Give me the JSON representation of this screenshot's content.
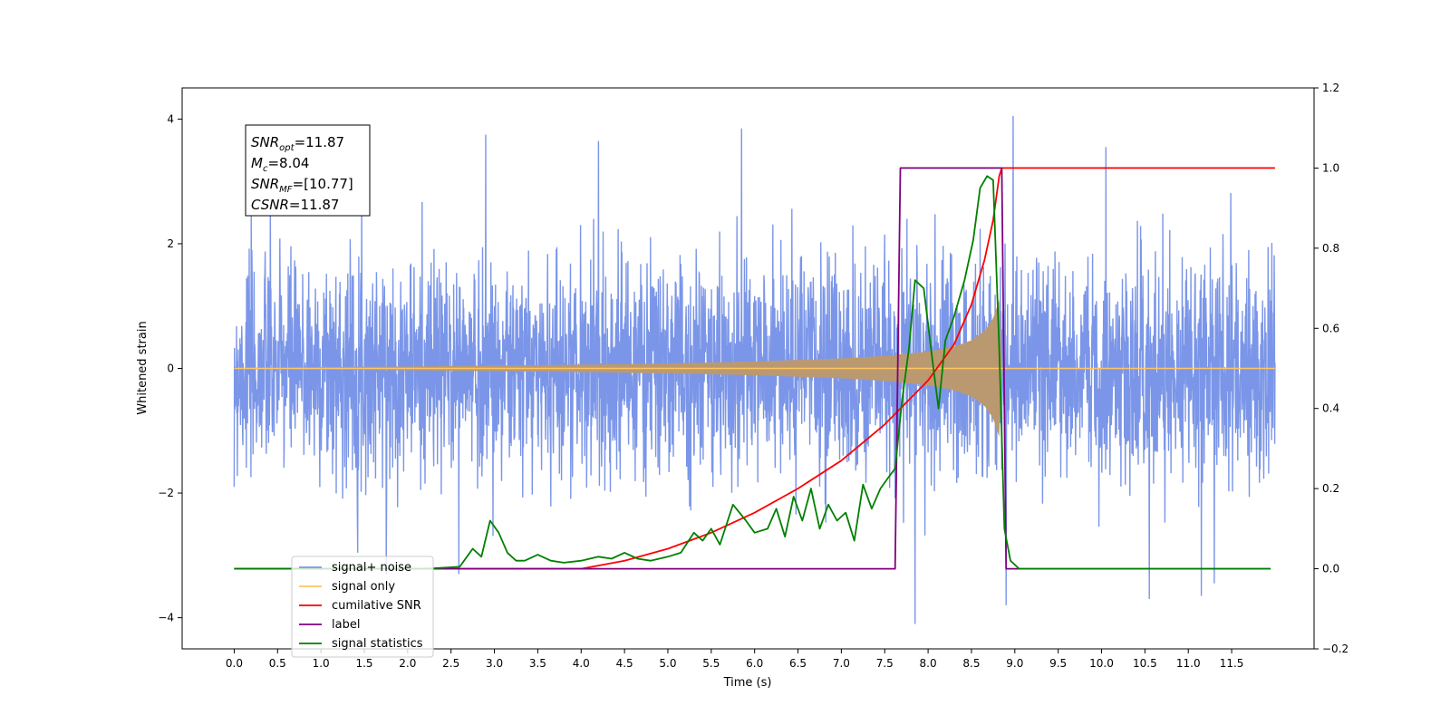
{
  "chart_data": {
    "type": "line",
    "xlabel": "Time (s)",
    "ylabel_left": "Whitened strain",
    "ylabel_right": "",
    "xlim": [
      -0.6,
      12.45
    ],
    "ylim_left": [
      -4.5,
      4.5
    ],
    "ylim_right": [
      -0.2,
      1.2
    ],
    "x_ticks": [
      "0.0",
      "0.5",
      "1.0",
      "1.5",
      "2.0",
      "2.5",
      "3.0",
      "3.5",
      "4.0",
      "4.5",
      "5.0",
      "5.5",
      "6.0",
      "6.5",
      "7.0",
      "7.5",
      "8.0",
      "8.5",
      "9.0",
      "9.5",
      "10.0",
      "10.5",
      "11.0",
      "11.5"
    ],
    "y_ticks_left": [
      "−4",
      "−2",
      "0",
      "2",
      "4"
    ],
    "y_ticks_right": [
      "−0.2",
      "0.0",
      "0.2",
      "0.4",
      "0.6",
      "0.8",
      "1.0",
      "1.2"
    ],
    "grid": false,
    "legend_position": "lower-left",
    "legend": [
      {
        "label": "signal+ noise",
        "color": "#7b96e8"
      },
      {
        "label": "signal only",
        "color": "#ffc562"
      },
      {
        "label": "cumilative SNR",
        "color": "#ff0000"
      },
      {
        "label": "label",
        "color": "#800080"
      },
      {
        "label": "signal statistics",
        "color": "#008000"
      }
    ],
    "annotation": {
      "lines": [
        {
          "name": "SNR",
          "sub": "opt",
          "value": "=11.87"
        },
        {
          "name": "M",
          "sub": "c",
          "value": "=8.04"
        },
        {
          "name": "SNR",
          "sub": "MF",
          "value": "=[10.77]"
        },
        {
          "name": "CSNR",
          "sub": "",
          "value": "=11.87"
        }
      ]
    },
    "series": [
      {
        "name": "signal+ noise",
        "axis": "left",
        "color": "#7b96e8",
        "x_range": [
          0.0,
          12.0
        ],
        "envelope_typical": 2.2,
        "spikes": [
          [
            0.0,
            1.9
          ],
          [
            0.0,
            -1.9
          ],
          [
            2.9,
            3.75
          ],
          [
            4.2,
            3.65
          ],
          [
            5.85,
            3.85
          ],
          [
            7.85,
            -4.1
          ],
          [
            8.9,
            -3.8
          ],
          [
            8.98,
            4.05
          ],
          [
            10.05,
            3.55
          ],
          [
            10.55,
            -3.7
          ],
          [
            11.15,
            -3.65
          ],
          [
            11.3,
            -3.45
          ]
        ]
      },
      {
        "name": "signal only",
        "axis": "left",
        "color": "#ffc562",
        "x": [
          0.0,
          2.0,
          4.0,
          5.0,
          6.0,
          7.0,
          7.5,
          8.0,
          8.3,
          8.5,
          8.65,
          8.75,
          8.82,
          8.85,
          12.0
        ],
        "amp": [
          0.01,
          0.03,
          0.06,
          0.08,
          0.11,
          0.16,
          0.2,
          0.27,
          0.35,
          0.45,
          0.6,
          0.8,
          1.1,
          0.0,
          0.0
        ]
      },
      {
        "name": "cumilative SNR",
        "axis": "right",
        "color": "#ff0000",
        "x": [
          4.0,
          4.5,
          5.0,
          5.5,
          6.0,
          6.5,
          7.0,
          7.5,
          8.0,
          8.3,
          8.5,
          8.65,
          8.75,
          8.82,
          8.85,
          12.0
        ],
        "y": [
          0.0,
          0.02,
          0.05,
          0.09,
          0.14,
          0.2,
          0.27,
          0.36,
          0.47,
          0.56,
          0.66,
          0.77,
          0.87,
          0.98,
          1.0,
          1.0
        ]
      },
      {
        "name": "label",
        "axis": "right",
        "color": "#800080",
        "x": [
          0.0,
          7.62,
          7.68,
          8.85,
          8.9,
          11.95
        ],
        "y": [
          0.0,
          0.0,
          1.0,
          1.0,
          0.0,
          0.0
        ]
      },
      {
        "name": "signal statistics",
        "axis": "right",
        "color": "#008000",
        "x": [
          0.0,
          2.2,
          2.6,
          2.65,
          2.75,
          2.85,
          2.95,
          3.05,
          3.15,
          3.25,
          3.35,
          3.5,
          3.65,
          3.8,
          4.0,
          4.2,
          4.35,
          4.5,
          4.65,
          4.8,
          5.0,
          5.15,
          5.3,
          5.4,
          5.5,
          5.6,
          5.75,
          5.9,
          6.0,
          6.15,
          6.25,
          6.35,
          6.45,
          6.55,
          6.65,
          6.75,
          6.85,
          6.95,
          7.05,
          7.15,
          7.25,
          7.35,
          7.45,
          7.55,
          7.62,
          7.7,
          7.78,
          7.85,
          7.95,
          8.05,
          8.12,
          8.2,
          8.3,
          8.42,
          8.52,
          8.6,
          8.68,
          8.75,
          8.82,
          8.88,
          8.95,
          9.05,
          11.95
        ],
        "y": [
          0.0,
          0.0,
          0.005,
          0.02,
          0.05,
          0.03,
          0.12,
          0.09,
          0.04,
          0.02,
          0.02,
          0.035,
          0.02,
          0.015,
          0.02,
          0.03,
          0.025,
          0.04,
          0.025,
          0.02,
          0.03,
          0.04,
          0.09,
          0.07,
          0.1,
          0.06,
          0.16,
          0.12,
          0.09,
          0.1,
          0.15,
          0.08,
          0.18,
          0.12,
          0.2,
          0.1,
          0.16,
          0.12,
          0.14,
          0.07,
          0.21,
          0.15,
          0.2,
          0.23,
          0.25,
          0.42,
          0.55,
          0.72,
          0.7,
          0.52,
          0.4,
          0.57,
          0.63,
          0.72,
          0.82,
          0.95,
          0.98,
          0.97,
          0.55,
          0.1,
          0.02,
          0.0,
          0.0
        ]
      }
    ]
  }
}
